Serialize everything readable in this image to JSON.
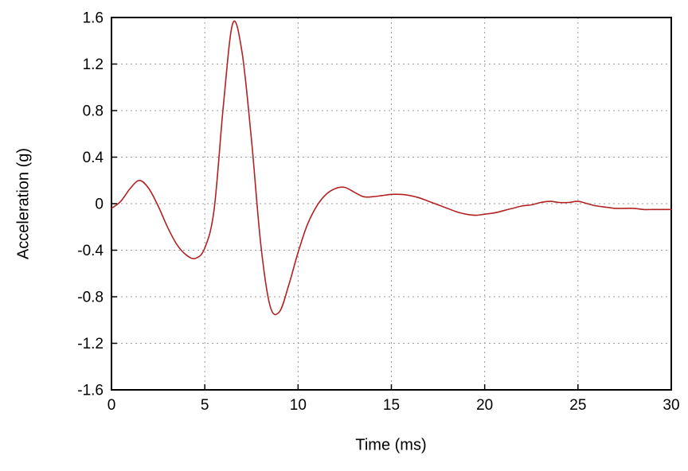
{
  "chart_data": {
    "type": "line",
    "title": "",
    "xlabel": "Time (ms)",
    "ylabel": "Acceleration (g)",
    "xlim": [
      0,
      30
    ],
    "ylim": [
      -1.6,
      1.6
    ],
    "xticks": [
      0,
      5,
      10,
      15,
      20,
      25,
      30
    ],
    "xtick_labels": [
      "0",
      "5",
      "10",
      "15",
      "20",
      "25",
      "30"
    ],
    "yticks": [
      -1.6,
      -1.2,
      -0.8,
      -0.4,
      0,
      0.4,
      0.8,
      1.2,
      1.6
    ],
    "ytick_labels": [
      "-1.6",
      "-1.2",
      "-0.8",
      "-0.4",
      "0",
      "0.4",
      "0.8",
      "1.2",
      "1.6"
    ],
    "grid": "dashed",
    "grid_color": "#999999",
    "axis_color": "#000000",
    "legend": "none",
    "series": [
      {
        "name": "acceleration",
        "color": "#b22222",
        "x": [
          0,
          0.5,
          1,
          1.5,
          2,
          2.5,
          3,
          3.5,
          4,
          4.5,
          5,
          5.5,
          6,
          6.5,
          7,
          7.5,
          8,
          8.5,
          9,
          9.5,
          10,
          10.5,
          11,
          11.5,
          12,
          12.5,
          13,
          13.5,
          14,
          14.5,
          15,
          15.5,
          16,
          16.5,
          17,
          17.5,
          18,
          18.5,
          19,
          19.5,
          20,
          20.5,
          21,
          21.5,
          22,
          22.5,
          23,
          23.5,
          24,
          24.5,
          25,
          25.5,
          26,
          26.5,
          27,
          27.5,
          28,
          28.5,
          29,
          29.5,
          30
        ],
        "y": [
          -0.04,
          0.02,
          0.13,
          0.2,
          0.13,
          -0.02,
          -0.2,
          -0.35,
          -0.44,
          -0.47,
          -0.38,
          -0.05,
          0.85,
          1.55,
          1.3,
          0.55,
          -0.35,
          -0.88,
          -0.93,
          -0.7,
          -0.42,
          -0.18,
          -0.02,
          0.08,
          0.13,
          0.14,
          0.1,
          0.06,
          0.06,
          0.07,
          0.08,
          0.08,
          0.07,
          0.05,
          0.02,
          -0.01,
          -0.04,
          -0.07,
          -0.09,
          -0.1,
          -0.09,
          -0.08,
          -0.06,
          -0.04,
          -0.02,
          -0.01,
          0.01,
          0.02,
          0.01,
          0.01,
          0.02,
          0.0,
          -0.02,
          -0.03,
          -0.04,
          -0.04,
          -0.04,
          -0.05,
          -0.05,
          -0.05,
          -0.05
        ]
      }
    ]
  }
}
